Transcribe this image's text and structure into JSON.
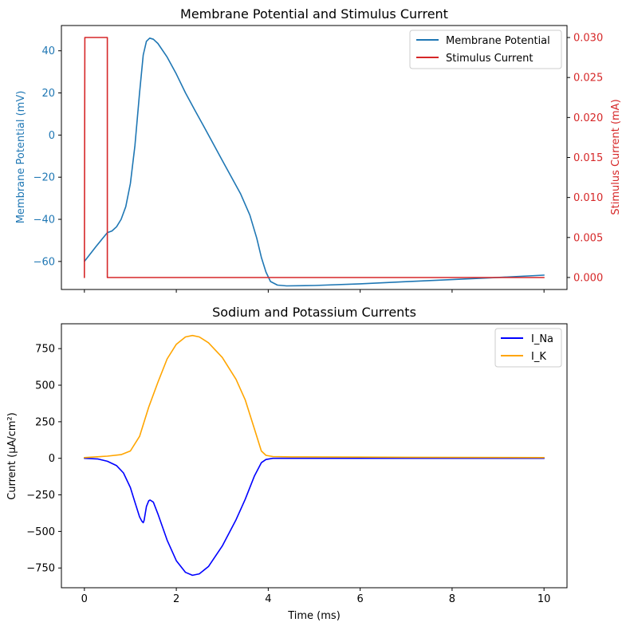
{
  "chart_data": [
    {
      "type": "line",
      "title": "Membrane Potential and Stimulus Current",
      "xlabel": "",
      "ylabel": "Membrane Potential (mV)",
      "y2label": "Stimulus Current (mA)",
      "xlim": [
        -0.5,
        10.5
      ],
      "ylim": [
        -73.3,
        52
      ],
      "y2lim": [
        -0.0015,
        0.0315
      ],
      "xticks": [
        0,
        2,
        4,
        6,
        8,
        10
      ],
      "yticks": [
        -60,
        -40,
        -20,
        0,
        20,
        40
      ],
      "ytick_labels": [
        "−60",
        "−40",
        "−20",
        "0",
        "20",
        "40"
      ],
      "y2ticks": [
        0.0,
        0.005,
        0.01,
        0.015,
        0.02,
        0.025,
        0.03
      ],
      "y2tick_labels": [
        "0.000",
        "0.005",
        "0.010",
        "0.015",
        "0.020",
        "0.025",
        "0.030"
      ],
      "legend": {
        "placement": "top-right",
        "entries": [
          "Membrane Potential",
          "Stimulus Current"
        ]
      },
      "series": [
        {
          "name": "Membrane Potential",
          "axis": "left",
          "color": "#1f77b4",
          "x": [
            0,
            0.25,
            0.5,
            0.6,
            0.7,
            0.8,
            0.9,
            1.0,
            1.1,
            1.2,
            1.28,
            1.35,
            1.42,
            1.5,
            1.6,
            1.8,
            2.0,
            2.2,
            2.4,
            2.6,
            2.8,
            3.0,
            3.2,
            3.4,
            3.6,
            3.75,
            3.85,
            3.95,
            4.05,
            4.2,
            4.4,
            5,
            6,
            7,
            8,
            9,
            10
          ],
          "y": [
            -60,
            -53,
            -46.3,
            -45.5,
            -43.5,
            -40,
            -34,
            -23,
            -5,
            20,
            38,
            44.5,
            46,
            45.5,
            43.5,
            37,
            29,
            20,
            12,
            4,
            -4,
            -12,
            -20,
            -28,
            -38,
            -49,
            -58,
            -65,
            -69.5,
            -71.2,
            -71.6,
            -71.4,
            -70.6,
            -69.6,
            -68.6,
            -67.6,
            -66.5
          ]
        },
        {
          "name": "Stimulus Current",
          "axis": "right",
          "color": "#d62728",
          "x": [
            0,
            0.0,
            0.01,
            0.5,
            0.5,
            10
          ],
          "y": [
            0.0,
            0.0,
            0.03,
            0.03,
            0.0,
            0.0
          ]
        }
      ]
    },
    {
      "type": "line",
      "title": "Sodium and Potassium Currents",
      "xlabel": "Time (ms)",
      "ylabel": "Current (µA/cm²)",
      "xlim": [
        -0.5,
        10.5
      ],
      "ylim": [
        -885,
        920
      ],
      "xticks": [
        0,
        2,
        4,
        6,
        8,
        10
      ],
      "yticks": [
        -750,
        -500,
        -250,
        0,
        250,
        500,
        750
      ],
      "ytick_labels": [
        "−750",
        "−500",
        "−250",
        "0",
        "250",
        "500",
        "750"
      ],
      "legend": {
        "placement": "top-right",
        "entries": [
          "I_Na",
          "I_K"
        ]
      },
      "series": [
        {
          "name": "I_Na",
          "color": "#0000ff",
          "x": [
            0,
            0.3,
            0.5,
            0.7,
            0.85,
            1.0,
            1.1,
            1.2,
            1.25,
            1.28,
            1.3,
            1.35,
            1.4,
            1.43,
            1.5,
            1.6,
            1.8,
            2.0,
            2.2,
            2.35,
            2.5,
            2.7,
            3.0,
            3.3,
            3.5,
            3.7,
            3.85,
            3.95,
            4.1,
            4.5,
            6,
            8,
            10
          ],
          "y": [
            0,
            -5,
            -20,
            -50,
            -100,
            -200,
            -300,
            -400,
            -430,
            -440,
            -425,
            -330,
            -290,
            -285,
            -300,
            -380,
            -560,
            -700,
            -780,
            -800,
            -790,
            -740,
            -600,
            -420,
            -280,
            -120,
            -30,
            -8,
            0,
            0,
            0,
            0,
            0
          ]
        },
        {
          "name": "I_K",
          "color": "#ffa500",
          "x": [
            0,
            0.5,
            0.8,
            1.0,
            1.2,
            1.4,
            1.6,
            1.8,
            2.0,
            2.2,
            2.35,
            2.5,
            2.7,
            3.0,
            3.3,
            3.5,
            3.7,
            3.85,
            3.95,
            4.1,
            4.5,
            6,
            8,
            10
          ],
          "y": [
            5,
            15,
            25,
            50,
            150,
            350,
            520,
            680,
            780,
            830,
            840,
            830,
            790,
            690,
            540,
            400,
            200,
            50,
            20,
            12,
            10,
            8,
            6,
            5
          ]
        }
      ]
    }
  ]
}
